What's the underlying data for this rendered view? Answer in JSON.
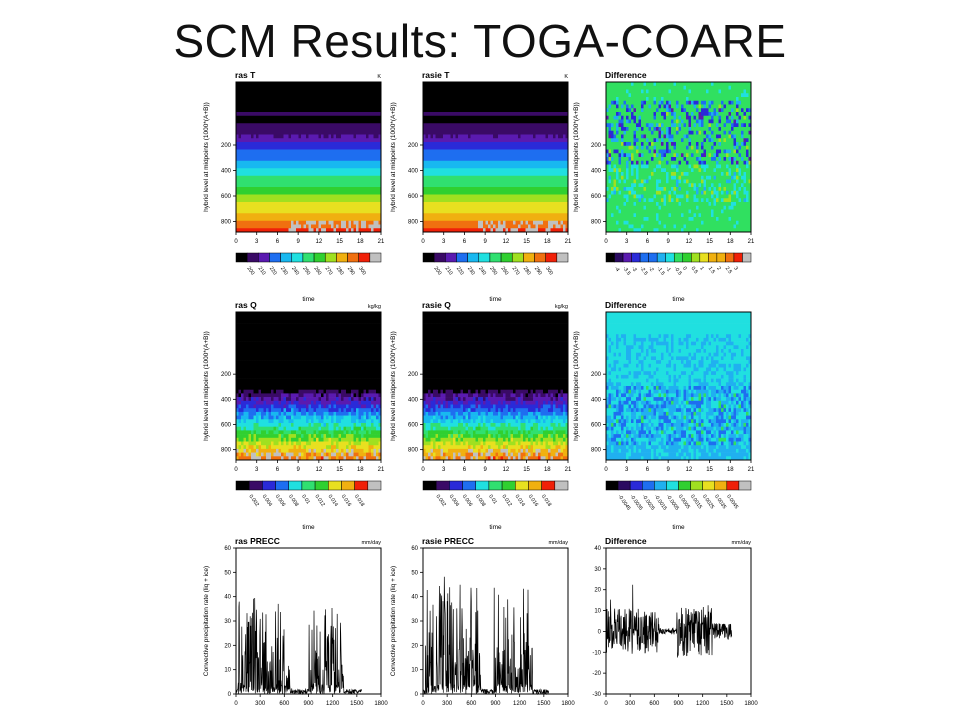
{
  "slide": {
    "title": "SCM Results: TOGA-COARE"
  },
  "colors": {
    "palette": [
      "#000000",
      "#3a0a66",
      "#5a1ab0",
      "#2a2ad8",
      "#1e6ef0",
      "#18b8f0",
      "#20e0e0",
      "#30e070",
      "#30d030",
      "#a0e020",
      "#e8e020",
      "#f0b010",
      "#f07010",
      "#f02008",
      "#c0c0c0"
    ],
    "diff_palette": [
      "#000000",
      "#2a0a60",
      "#5a1ab0",
      "#2a2ad8",
      "#1e6ef0",
      "#20b0f0",
      "#20e0e0",
      "#30e060",
      "#30d030",
      "#a0e020",
      "#e8e020",
      "#f0b010",
      "#f07010",
      "#f02008",
      "#c0c0c0"
    ]
  },
  "chart_data": [
    {
      "id": "ras-T",
      "type": "heatmap",
      "title": "ras T",
      "units": "K",
      "ylabel": "hybrid level at midpoints (1000*(A+B))",
      "xlabel": "time",
      "x_ticks": [
        "0",
        "3",
        "6",
        "9",
        "12",
        "15",
        "18",
        "21"
      ],
      "y_ticks": [
        "200",
        "400",
        "600",
        "800"
      ],
      "colorbar_labels": [
        "200",
        "210",
        "220",
        "230",
        "240",
        "250",
        "260",
        "270",
        "280",
        "290",
        "300"
      ]
    },
    {
      "id": "rasie-T",
      "type": "heatmap",
      "title": "rasie T",
      "units": "K",
      "ylabel": "hybrid level at midpoints (1000*(A+B))",
      "xlabel": "time",
      "x_ticks": [
        "0",
        "3",
        "6",
        "9",
        "12",
        "15",
        "18",
        "21"
      ],
      "y_ticks": [
        "200",
        "400",
        "600",
        "800"
      ],
      "colorbar_labels": [
        "200",
        "210",
        "220",
        "230",
        "240",
        "250",
        "260",
        "270",
        "280",
        "290",
        "300"
      ]
    },
    {
      "id": "diff-T",
      "type": "heatmap",
      "title": "Difference",
      "units": "",
      "ylabel": "hybrid level at midpoints (1000*(A+B))",
      "xlabel": "time",
      "x_ticks": [
        "0",
        "3",
        "6",
        "9",
        "12",
        "15",
        "18",
        "21"
      ],
      "y_ticks": [
        "200",
        "400",
        "600",
        "800"
      ],
      "colorbar_labels": [
        "-4",
        "-3.5",
        "-3",
        "-2.5",
        "-2",
        "-1.5",
        "-1",
        "-0.5",
        "0",
        "0.5",
        "1",
        "1.5",
        "2",
        "2.5",
        "3"
      ]
    },
    {
      "id": "ras-Q",
      "type": "heatmap",
      "title": "ras Q",
      "units": "kg/kg",
      "ylabel": "hybrid level at midpoints (1000*(A+B))",
      "xlabel": "time",
      "x_ticks": [
        "0",
        "3",
        "6",
        "9",
        "12",
        "15",
        "18",
        "21"
      ],
      "y_ticks": [
        "200",
        "400",
        "600",
        "800"
      ],
      "colorbar_labels": [
        "0.002",
        "0.004",
        "0.006",
        "0.008",
        "0.01",
        "0.012",
        "0.014",
        "0.016",
        "0.018"
      ]
    },
    {
      "id": "rasie-Q",
      "type": "heatmap",
      "title": "rasie Q",
      "units": "kg/kg",
      "ylabel": "hybrid level at midpoints (1000*(A+B))",
      "xlabel": "time",
      "x_ticks": [
        "0",
        "3",
        "6",
        "9",
        "12",
        "15",
        "18",
        "21"
      ],
      "y_ticks": [
        "200",
        "400",
        "600",
        "800"
      ],
      "colorbar_labels": [
        "0.002",
        "0.004",
        "0.006",
        "0.008",
        "0.01",
        "0.012",
        "0.014",
        "0.016",
        "0.018"
      ]
    },
    {
      "id": "diff-Q",
      "type": "heatmap",
      "title": "Difference",
      "units": "",
      "ylabel": "hybrid level at midpoints (1000*(A+B))",
      "xlabel": "time",
      "x_ticks": [
        "0",
        "3",
        "6",
        "9",
        "12",
        "15",
        "18",
        "21"
      ],
      "y_ticks": [
        "200",
        "400",
        "600",
        "800"
      ],
      "colorbar_labels": [
        "-0.0045",
        "-0.0035",
        "-0.0025",
        "-0.0015",
        "-0.0005",
        "0.0005",
        "0.0015",
        "0.0025",
        "0.0035",
        "0.0045"
      ]
    },
    {
      "id": "ras-PRECC",
      "type": "line",
      "title": "ras PRECC",
      "units": "mm/day",
      "ylabel": "Convective precipitation rate (liq + ice)",
      "xlabel": "",
      "xlim": [
        0,
        1800
      ],
      "ylim": [
        0,
        60
      ],
      "x_ticks": [
        "0",
        "300",
        "600",
        "900",
        "1200",
        "1500",
        "1800"
      ],
      "y_ticks": [
        "0",
        "10",
        "20",
        "30",
        "40",
        "50",
        "60"
      ],
      "series_desc": "spiky rainfall, peaks ~40 near t=150, bursts near 1000-1250"
    },
    {
      "id": "rasie-PRECC",
      "type": "line",
      "title": "rasie PRECC",
      "units": "mm/day",
      "ylabel": "Convective precipitation rate (liq + ice)",
      "xlabel": "",
      "xlim": [
        0,
        1800
      ],
      "ylim": [
        0,
        60
      ],
      "x_ticks": [
        "0",
        "300",
        "600",
        "900",
        "1200",
        "1500",
        "1800"
      ],
      "y_ticks": [
        "0",
        "10",
        "20",
        "30",
        "40",
        "50",
        "60"
      ]
    },
    {
      "id": "diff-PRECC",
      "type": "line",
      "title": "Difference",
      "units": "mm/day",
      "ylabel": "",
      "xlabel": "",
      "xlim": [
        0,
        1800
      ],
      "ylim": [
        -30,
        40
      ],
      "x_ticks": [
        "0",
        "300",
        "600",
        "900",
        "1200",
        "1500",
        "1800"
      ],
      "y_ticks": [
        "-30",
        "-20",
        "-10",
        "0",
        "10",
        "20",
        "30",
        "40"
      ]
    }
  ]
}
